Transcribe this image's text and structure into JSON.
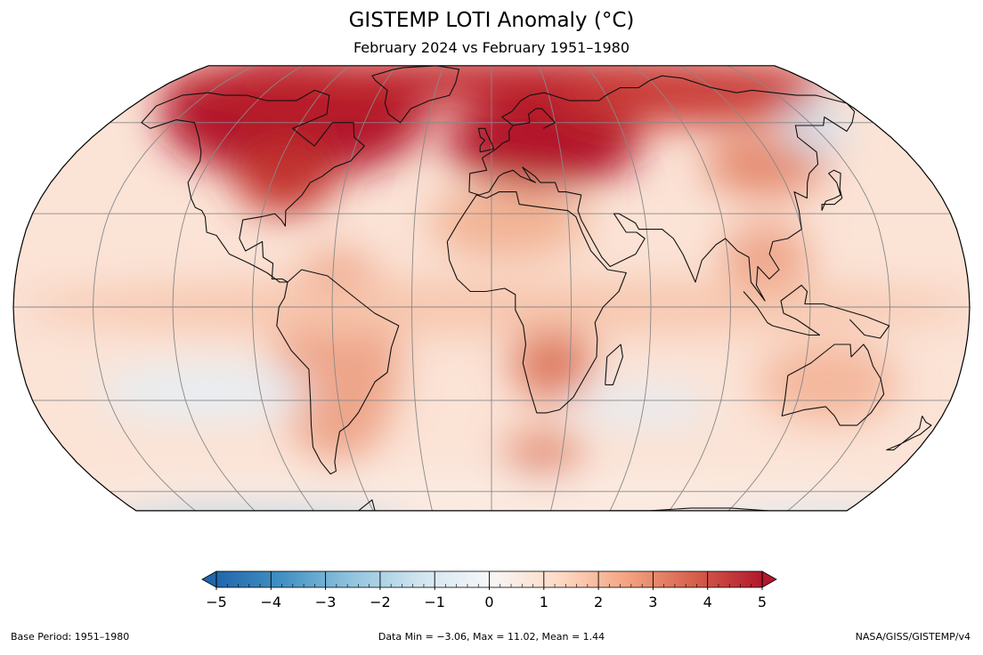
{
  "title": "GISTEMP LOTI Anomaly (°C)",
  "subtitle": "February 2024 vs February 1951–1980",
  "colorbar": {
    "min": -5,
    "max": 5,
    "tick_labels": [
      "−5",
      "−4",
      "−3",
      "−2",
      "−1",
      "0",
      "1",
      "2",
      "3",
      "4",
      "5"
    ],
    "tick_values": [
      -5,
      -4,
      -3,
      -2,
      -1,
      0,
      1,
      2,
      3,
      4,
      5
    ],
    "colors": [
      "#2166ac",
      "#4393c3",
      "#92c5de",
      "#d1e5f0",
      "#f7f7f7",
      "#fddbc7",
      "#f4a582",
      "#d6604d",
      "#b2182b"
    ]
  },
  "map": {
    "projection": "robinson",
    "graticule_lats": [
      -60,
      -30,
      0,
      30,
      60
    ],
    "graticule_lons": [
      -150,
      -120,
      -90,
      -60,
      -30,
      0,
      30,
      60,
      90,
      120,
      150
    ],
    "land_color": "#d9d9d9",
    "ocean_base_color": "#fbe3d6"
  },
  "footer": {
    "left": "Base Period: 1951–1980",
    "center": "Data Min = −3.06, Max = 11.02, Mean = 1.44",
    "right": "NASA/GISS/GISTEMP/v4"
  }
}
